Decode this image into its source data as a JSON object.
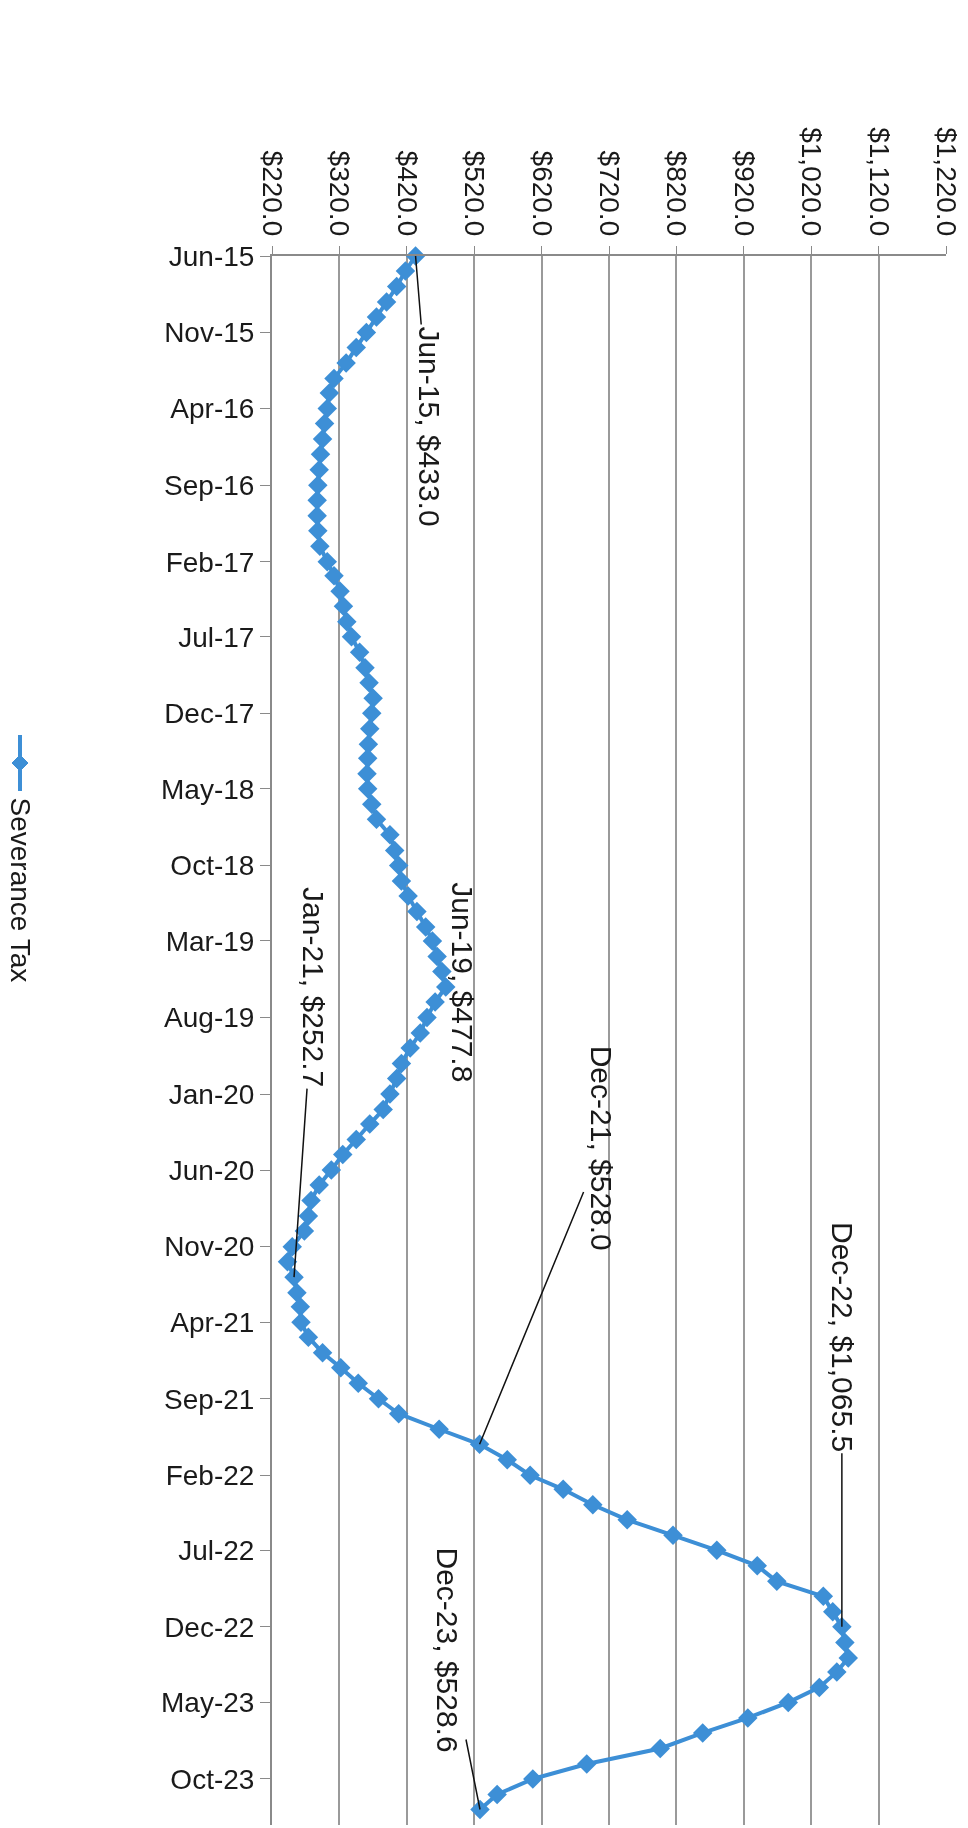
{
  "chart_data": {
    "type": "line",
    "orientation": "horizontal",
    "x": [
      "2015-06",
      "2015-07",
      "2015-08",
      "2015-09",
      "2015-10",
      "2015-11",
      "2015-12",
      "2016-01",
      "2016-02",
      "2016-03",
      "2016-04",
      "2016-05",
      "2016-06",
      "2016-07",
      "2016-08",
      "2016-09",
      "2016-10",
      "2016-11",
      "2016-12",
      "2017-01",
      "2017-02",
      "2017-03",
      "2017-04",
      "2017-05",
      "2017-06",
      "2017-07",
      "2017-08",
      "2017-09",
      "2017-10",
      "2017-11",
      "2017-12",
      "2018-01",
      "2018-02",
      "2018-03",
      "2018-04",
      "2018-05",
      "2018-06",
      "2018-07",
      "2018-08",
      "2018-09",
      "2018-10",
      "2018-11",
      "2018-12",
      "2019-01",
      "2019-02",
      "2019-03",
      "2019-04",
      "2019-05",
      "2019-06",
      "2019-07",
      "2019-08",
      "2019-09",
      "2019-10",
      "2019-11",
      "2019-12",
      "2020-01",
      "2020-02",
      "2020-03",
      "2020-04",
      "2020-05",
      "2020-06",
      "2020-07",
      "2020-08",
      "2020-09",
      "2020-10",
      "2020-11",
      "2020-12",
      "2021-01",
      "2021-02",
      "2021-03",
      "2021-04",
      "2021-05",
      "2021-06",
      "2021-07",
      "2021-08",
      "2021-09",
      "2021-10",
      "2021-11",
      "2021-12",
      "2022-01",
      "2022-02",
      "2022-03",
      "2022-04",
      "2022-05",
      "2022-06",
      "2022-07",
      "2022-08",
      "2022-09",
      "2022-10",
      "2022-11",
      "2022-12",
      "2023-01",
      "2023-02",
      "2023-03",
      "2023-04",
      "2023-05",
      "2023-06",
      "2023-07",
      "2023-08",
      "2023-09",
      "2023-10",
      "2023-11",
      "2023-12"
    ],
    "series": [
      {
        "name": "Severance Tax",
        "color": "#3d8fd6",
        "values": [
          433.0,
          418,
          405,
          390,
          375,
          360,
          345,
          330,
          312,
          305,
          302,
          298,
          295,
          292,
          290,
          288,
          287,
          287,
          288,
          291,
          302,
          312,
          321,
          326,
          331,
          338,
          350,
          358,
          364,
          370,
          368,
          365,
          363,
          362,
          361,
          362,
          368,
          375,
          395,
          402,
          408,
          412,
          422,
          435,
          448,
          458,
          465,
          472,
          477.8,
          462,
          450,
          440,
          425,
          412,
          405,
          395,
          385,
          365,
          345,
          325,
          308,
          290,
          278,
          274,
          268,
          250,
          243,
          252.7,
          257,
          262,
          263,
          274,
          295,
          322,
          348,
          378,
          408,
          468,
          528.0,
          569,
          603,
          652,
          696,
          747,
          815,
          880,
          940,
          969,
          1038,
          1052,
          1065.5,
          1070,
          1075,
          1058,
          1032,
          986,
          926,
          859,
          796,
          687,
          607,
          554,
          528.6
        ]
      }
    ],
    "xlim": [
      220,
      1220
    ],
    "xticks": [
      {
        "value": 220,
        "label": "$220.0"
      },
      {
        "value": 320,
        "label": "$320.0"
      },
      {
        "value": 420,
        "label": "$420.0"
      },
      {
        "value": 520,
        "label": "$520.0"
      },
      {
        "value": 620,
        "label": "$620.0"
      },
      {
        "value": 720,
        "label": "$720.0"
      },
      {
        "value": 820,
        "label": "$820.0"
      },
      {
        "value": 920,
        "label": "$920.0"
      },
      {
        "value": 1020,
        "label": "$1,020.0"
      },
      {
        "value": 1120,
        "label": "$1,120.0"
      },
      {
        "value": 1220,
        "label": "$1,220.0"
      }
    ],
    "ylim": [
      "2024-01",
      "2015-06"
    ],
    "yticks": [
      {
        "value": "2015-06",
        "label": "Jun-15"
      },
      {
        "value": "2015-11",
        "label": "Nov-15"
      },
      {
        "value": "2016-04",
        "label": "Apr-16"
      },
      {
        "value": "2016-09",
        "label": "Sep-16"
      },
      {
        "value": "2017-02",
        "label": "Feb-17"
      },
      {
        "value": "2017-07",
        "label": "Jul-17"
      },
      {
        "value": "2017-12",
        "label": "Dec-17"
      },
      {
        "value": "2018-05",
        "label": "May-18"
      },
      {
        "value": "2018-10",
        "label": "Oct-18"
      },
      {
        "value": "2019-03",
        "label": "Mar-19"
      },
      {
        "value": "2019-08",
        "label": "Aug-19"
      },
      {
        "value": "2020-01",
        "label": "Jan-20"
      },
      {
        "value": "2020-06",
        "label": "Jun-20"
      },
      {
        "value": "2020-11",
        "label": "Nov-20"
      },
      {
        "value": "2021-04",
        "label": "Apr-21"
      },
      {
        "value": "2021-09",
        "label": "Sep-21"
      },
      {
        "value": "2022-02",
        "label": "Feb-22"
      },
      {
        "value": "2022-07",
        "label": "Jul-22"
      },
      {
        "value": "2022-12",
        "label": "Dec-22"
      },
      {
        "value": "2023-05",
        "label": "May-23"
      },
      {
        "value": "2023-10",
        "label": "Oct-23"
      }
    ],
    "annotations": [
      {
        "text": "Jun-15, $433.0",
        "x": 433.0,
        "y": "2015-06"
      },
      {
        "text": "Jun-19, $477.8",
        "x": 477.8,
        "y": "2019-06"
      },
      {
        "text": "Jan-21, $252.7",
        "x": 252.7,
        "y": "2021-01"
      },
      {
        "text": "Dec-21, $528.0",
        "x": 528.0,
        "y": "2021-12"
      },
      {
        "text": "Dec-22, $1,065.5",
        "x": 1065.5,
        "y": "2022-12"
      },
      {
        "text": "Dec-23, $528.6",
        "x": 528.6,
        "y": "2023-12"
      }
    ],
    "grid": "x",
    "legend": "left",
    "marker": "diamond",
    "line_style": "solid"
  }
}
